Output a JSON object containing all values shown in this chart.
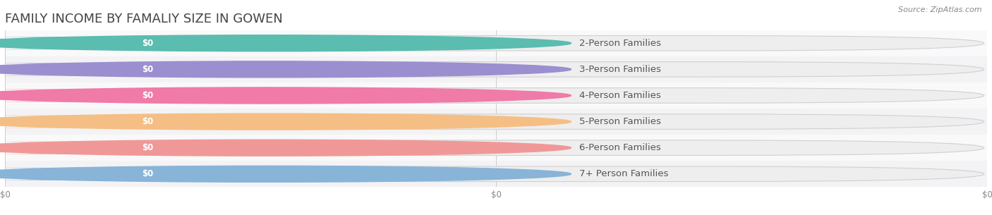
{
  "title": "FAMILY INCOME BY FAMALIY SIZE IN GOWEN",
  "source": "Source: ZipAtlas.com",
  "categories": [
    "2-Person Families",
    "3-Person Families",
    "4-Person Families",
    "5-Person Families",
    "6-Person Families",
    "7+ Person Families"
  ],
  "values": [
    0,
    0,
    0,
    0,
    0,
    0
  ],
  "bar_colors": [
    "#5bbcb0",
    "#9b8fcf",
    "#f07aa8",
    "#f5be84",
    "#f09898",
    "#88b4d8"
  ],
  "bar_bg_color": "#efefef",
  "bar_border_color": "#d8d8d8",
  "bg_color": "#ffffff",
  "stripe_colors": [
    "#f9f9f9",
    "#f3f3f5"
  ],
  "title_color": "#444444",
  "label_color": "#555555",
  "source_color": "#888888",
  "value_label": "$0",
  "figsize": [
    14.06,
    3.05
  ],
  "dpi": 100
}
